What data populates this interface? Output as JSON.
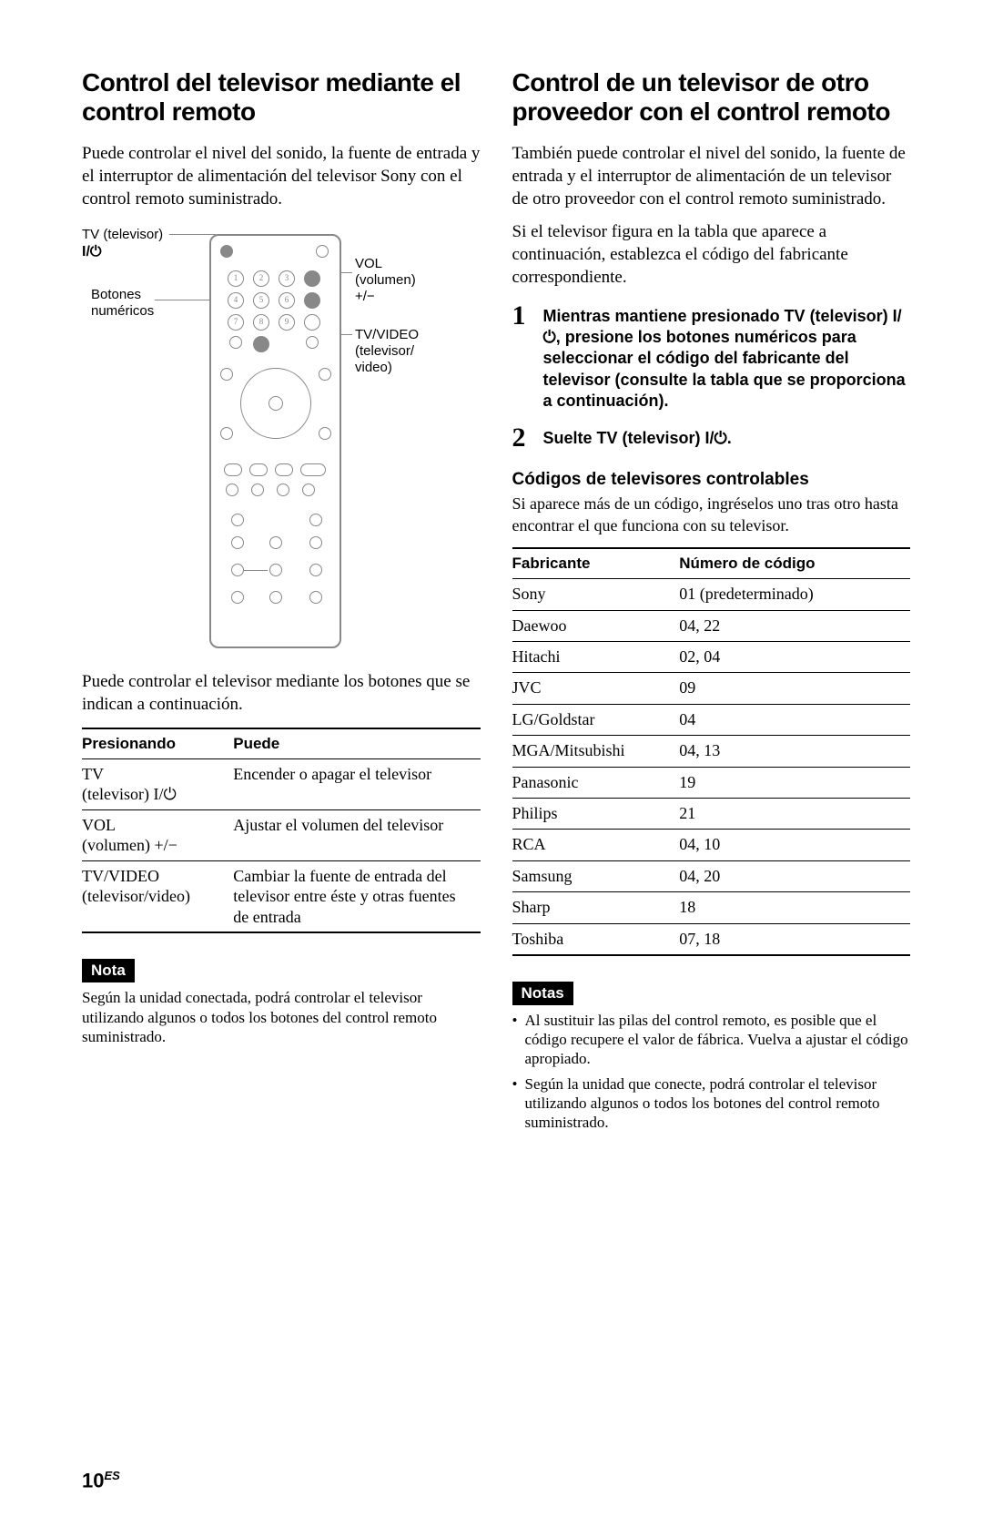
{
  "left": {
    "title": "Control del televisor mediante el control remoto",
    "intro": "Puede controlar el nivel del sonido, la fuente de entrada y el interruptor de alimentación del televisor Sony con el control remoto suministrado.",
    "diagram": {
      "label_tv": "TV (televisor)",
      "label_power": "I/",
      "label_numbtns_l1": "Botones",
      "label_numbtns_l2": "numéricos",
      "label_vol_l1": "VOL",
      "label_vol_l2": "(volumen)",
      "label_vol_l3": "+/−",
      "label_tvvideo_l1": "TV/VIDEO",
      "label_tvvideo_l2": "(televisor/",
      "label_tvvideo_l3": "video)"
    },
    "after_diagram": "Puede controlar el televisor mediante los botones que se indican a continuación.",
    "table": {
      "head_a": "Presionando",
      "head_b": "Puede",
      "rows": [
        {
          "a_l1": "TV",
          "a_l2": "(televisor) I/⏻",
          "b": "Encender o apagar el televisor"
        },
        {
          "a_l1": "VOL",
          "a_l2": "(volumen) +/−",
          "b": "Ajustar el volumen del televisor"
        },
        {
          "a_l1": "TV/VIDEO",
          "a_l2": "(televisor/video)",
          "b": "Cambiar la fuente de entrada del televisor entre éste y otras fuentes de entrada"
        }
      ]
    },
    "note_badge": "Nota",
    "note_text": "Según la unidad conectada, podrá controlar el televisor utilizando algunos o todos los botones del control remoto suministrado."
  },
  "right": {
    "title": "Control de un televisor de otro proveedor con el control remoto",
    "intro1": "También puede controlar el nivel del sonido, la fuente de entrada y el interruptor de alimentación de un televisor de otro proveedor con el control remoto suministrado.",
    "intro2": "Si el televisor figura en la tabla que aparece a continuación, establezca el código del fabricante correspondiente.",
    "steps": [
      {
        "n": "1",
        "text": "Mientras mantiene presionado TV (televisor) I/⏻, presione los botones numéricos para seleccionar el código del fabricante del televisor (consulte la tabla que se proporciona a continuación)."
      },
      {
        "n": "2",
        "text": "Suelte TV (televisor) I/⏻."
      }
    ],
    "subhead": "Códigos de televisores controlables",
    "subtext": "Si aparece más de un código, ingréselos uno tras otro hasta encontrar el que funciona con su televisor.",
    "codes": {
      "head_a": "Fabricante",
      "head_b": "Número de código",
      "rows": [
        {
          "m": "Sony",
          "c": "01 (predeterminado)"
        },
        {
          "m": "Daewoo",
          "c": "04, 22"
        },
        {
          "m": "Hitachi",
          "c": "02, 04"
        },
        {
          "m": "JVC",
          "c": "09"
        },
        {
          "m": "LG/Goldstar",
          "c": "04"
        },
        {
          "m": "MGA/Mitsubishi",
          "c": "04, 13"
        },
        {
          "m": "Panasonic",
          "c": "19"
        },
        {
          "m": "Philips",
          "c": "21"
        },
        {
          "m": "RCA",
          "c": "04, 10"
        },
        {
          "m": "Samsung",
          "c": "04, 20"
        },
        {
          "m": "Sharp",
          "c": "18"
        },
        {
          "m": "Toshiba",
          "c": "07, 18"
        }
      ]
    },
    "notes_badge": "Notas",
    "notes": [
      "Al sustituir las pilas del control remoto, es posible que el código recupere el valor de fábrica. Vuelva a ajustar el código apropiado.",
      "Según la unidad que conecte, podrá controlar el televisor utilizando algunos o todos los botones del control remoto suministrado."
    ]
  },
  "page": {
    "num": "10",
    "suffix": "ES"
  },
  "colors": {
    "text": "#000000",
    "diagram_stroke": "#888888",
    "background": "#ffffff"
  }
}
